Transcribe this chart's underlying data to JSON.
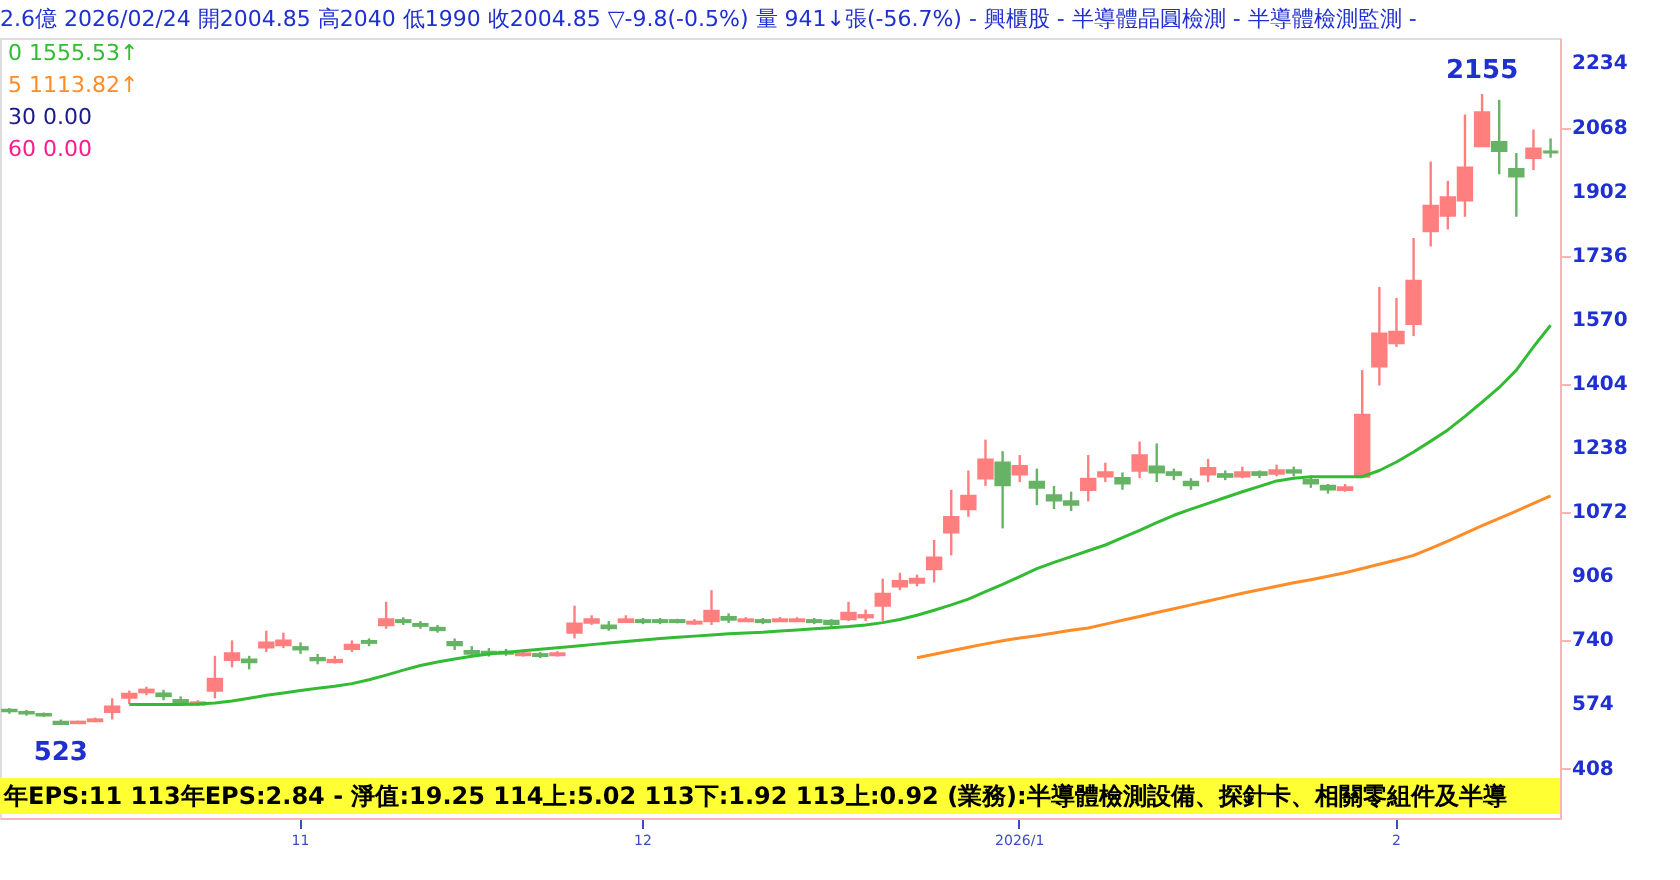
{
  "chart_data": {
    "type": "candlestick",
    "title": "2.6億  2026/02/24  開2004.85  高2040  低1990  收2004.85  ▽-9.8(-0.5%)  量 941↓張(-56.7%) - 興櫃股 - 半導體晶圓檢測 - 半導體檢測監測 -",
    "categories": [
      null,
      null,
      null,
      null,
      null,
      null,
      null,
      null,
      null,
      null,
      null,
      null,
      null,
      null,
      null,
      null,
      null,
      "11",
      null,
      null,
      null,
      null,
      null,
      null,
      null,
      null,
      null,
      null,
      null,
      null,
      null,
      null,
      null,
      null,
      null,
      null,
      null,
      "12",
      null,
      null,
      null,
      null,
      null,
      null,
      null,
      null,
      null,
      null,
      null,
      null,
      null,
      null,
      null,
      null,
      null,
      null,
      null,
      null,
      null,
      "2026/1",
      null,
      null,
      null,
      null,
      null,
      null,
      null,
      null,
      null,
      null,
      null,
      null,
      null,
      null,
      null,
      null,
      null,
      null,
      null,
      null,
      null,
      "2",
      null,
      null,
      null,
      null,
      null,
      null,
      null,
      null,
      null
    ],
    "ohlc": [
      [
        560,
        565,
        550,
        557
      ],
      [
        554,
        560,
        545,
        551
      ],
      [
        549,
        553,
        542,
        546
      ],
      [
        529,
        535,
        523,
        524
      ],
      [
        526,
        532,
        525,
        529
      ],
      [
        531,
        540,
        528,
        535
      ],
      [
        555,
        590,
        535,
        568
      ],
      [
        592,
        610,
        575,
        601
      ],
      [
        606,
        620,
        598,
        612
      ],
      [
        602,
        612,
        585,
        596
      ],
      [
        585,
        595,
        570,
        579
      ],
      [
        574,
        585,
        570,
        579
      ],
      [
        610,
        700,
        590,
        640
      ],
      [
        690,
        740,
        670,
        706
      ],
      [
        690,
        700,
        665,
        684
      ],
      [
        722,
        765,
        710,
        734
      ],
      [
        728,
        760,
        720,
        739
      ],
      [
        722,
        735,
        705,
        717
      ],
      [
        694,
        705,
        678,
        689
      ],
      [
        684,
        700,
        680,
        689
      ],
      [
        718,
        740,
        710,
        728
      ],
      [
        738,
        745,
        725,
        734
      ],
      [
        780,
        840,
        770,
        794
      ],
      [
        792,
        800,
        780,
        788
      ],
      [
        782,
        790,
        770,
        778
      ],
      [
        772,
        780,
        760,
        767
      ],
      [
        735,
        745,
        715,
        728
      ],
      [
        712,
        725,
        700,
        706
      ],
      [
        710,
        720,
        698,
        706
      ],
      [
        710,
        718,
        700,
        706
      ],
      [
        702,
        715,
        698,
        706
      ],
      [
        704,
        710,
        694,
        700
      ],
      [
        702,
        712,
        698,
        706
      ],
      [
        760,
        830,
        745,
        783
      ],
      [
        786,
        805,
        780,
        794
      ],
      [
        778,
        790,
        765,
        772
      ],
      [
        788,
        805,
        785,
        794
      ],
      [
        792,
        798,
        782,
        788
      ],
      [
        792,
        798,
        782,
        788
      ],
      [
        792,
        796,
        784,
        788
      ],
      [
        784,
        795,
        780,
        788
      ],
      [
        790,
        870,
        780,
        816
      ],
      [
        800,
        810,
        785,
        794
      ],
      [
        790,
        800,
        788,
        794
      ],
      [
        792,
        798,
        782,
        788
      ],
      [
        790,
        800,
        788,
        794
      ],
      [
        790,
        800,
        788,
        794
      ],
      [
        792,
        798,
        782,
        788
      ],
      [
        790,
        795,
        775,
        783
      ],
      [
        795,
        840,
        790,
        811
      ],
      [
        800,
        820,
        790,
        805
      ],
      [
        830,
        900,
        790,
        860
      ],
      [
        880,
        915,
        870,
        893
      ],
      [
        890,
        910,
        880,
        899
      ],
      [
        925,
        1000,
        890,
        954
      ],
      [
        1020,
        1130,
        960,
        1059
      ],
      [
        1080,
        1180,
        1060,
        1114
      ],
      [
        1160,
        1260,
        1140,
        1208
      ],
      [
        1200,
        1230,
        1030,
        1142
      ],
      [
        1170,
        1220,
        1150,
        1191
      ],
      [
        1150,
        1185,
        1090,
        1136
      ],
      [
        1115,
        1140,
        1080,
        1103
      ],
      [
        1100,
        1125,
        1075,
        1092
      ],
      [
        1130,
        1220,
        1100,
        1158
      ],
      [
        1165,
        1200,
        1150,
        1175
      ],
      [
        1160,
        1175,
        1130,
        1147
      ],
      [
        1180,
        1255,
        1160,
        1219
      ],
      [
        1190,
        1250,
        1150,
        1175
      ],
      [
        1175,
        1185,
        1155,
        1169
      ],
      [
        1150,
        1160,
        1130,
        1142
      ],
      [
        1170,
        1210,
        1150,
        1186
      ],
      [
        1170,
        1180,
        1155,
        1164
      ],
      [
        1165,
        1190,
        1160,
        1175
      ],
      [
        1175,
        1180,
        1160,
        1169
      ],
      [
        1172,
        1195,
        1165,
        1180
      ],
      [
        1180,
        1190,
        1165,
        1175
      ],
      [
        1155,
        1165,
        1135,
        1147
      ],
      [
        1140,
        1145,
        1120,
        1131
      ],
      [
        1130,
        1145,
        1125,
        1136
      ],
      [
        1164,
        1440,
        1164,
        1324
      ],
      [
        1450,
        1655,
        1400,
        1534
      ],
      [
        1510,
        1627,
        1500,
        1539
      ],
      [
        1560,
        1782,
        1528,
        1671
      ],
      [
        1800,
        1980,
        1760,
        1865
      ],
      [
        1840,
        1930,
        1804,
        1887
      ],
      [
        1880,
        2102,
        1837,
        1964
      ],
      [
        2020,
        2155,
        2019,
        2107
      ],
      [
        2030,
        2140,
        1947,
        2008
      ],
      [
        1960,
        2002,
        1837,
        1942
      ],
      [
        1990,
        2063,
        1958,
        2013
      ],
      [
        2004.85,
        2040,
        1990,
        2004.85
      ]
    ],
    "colors": [
      "#66b366",
      "#66b366",
      "#66b366",
      "#66b366",
      "#ff7f7f",
      "#ff7f7f",
      "#ff7f7f",
      "#ff7f7f",
      "#ff7f7f",
      "#66b366",
      "#66b366",
      "#ff7f7f",
      "#ff7f7f",
      "#ff7f7f",
      "#66b366",
      "#ff7f7f",
      "#ff7f7f",
      "#66b366",
      "#66b366",
      "#ff7f7f",
      "#ff7f7f",
      "#66b366",
      "#ff7f7f",
      "#66b366",
      "#66b366",
      "#66b366",
      "#66b366",
      "#66b366",
      "#66b366",
      "#66b366",
      "#ff7f7f",
      "#66b366",
      "#ff7f7f",
      "#ff7f7f",
      "#ff7f7f",
      "#66b366",
      "#ff7f7f",
      "#66b366",
      "#66b366",
      "#66b366",
      "#ff7f7f",
      "#ff7f7f",
      "#66b366",
      "#ff7f7f",
      "#66b366",
      "#ff7f7f",
      "#ff7f7f",
      "#66b366",
      "#66b366",
      "#ff7f7f",
      "#ff7f7f",
      "#ff7f7f",
      "#ff7f7f",
      "#ff7f7f",
      "#ff7f7f",
      "#ff7f7f",
      "#ff7f7f",
      "#ff7f7f",
      "#66b366",
      "#ff7f7f",
      "#66b366",
      "#66b366",
      "#66b366",
      "#ff7f7f",
      "#ff7f7f",
      "#66b366",
      "#ff7f7f",
      "#66b366",
      "#66b366",
      "#66b366",
      "#ff7f7f",
      "#66b366",
      "#ff7f7f",
      "#66b366",
      "#ff7f7f",
      "#66b366",
      "#66b366",
      "#66b366",
      "#ff7f7f",
      "#ff7f7f",
      "#ff7f7f",
      "#ff7f7f",
      "#ff7f7f",
      "#ff7f7f",
      "#ff7f7f",
      "#ff7f7f",
      "#ff7f7f",
      "#66b366",
      "#66b366",
      "#ff7f7f",
      "#66b366"
    ],
    "series": [
      {
        "type": "line",
        "color": "#33bb33",
        "values": [
          null,
          null,
          null,
          null,
          null,
          null,
          null,
          574,
          574,
          574,
          574,
          575,
          578,
          583,
          590,
          598,
          604,
          610,
          616,
          621,
          628,
          638,
          650,
          663,
          675,
          684,
          692,
          699,
          705,
          709,
          713,
          717,
          721,
          725,
          729,
          733,
          737,
          741,
          745,
          748,
          751,
          754,
          757,
          759,
          761,
          764,
          767,
          770,
          773,
          776,
          780,
          786,
          794,
          805,
          818,
          832,
          847,
          866,
          885,
          905,
          926,
          942,
          957,
          972,
          987,
          1006,
          1025,
          1045,
          1064,
          1080,
          1095,
          1110,
          1125,
          1139,
          1153,
          1160,
          1164,
          1164,
          1164,
          1164,
          1180,
          1202,
          1228,
          1256,
          1285,
          1320,
          1357,
          1395,
          1440,
          1500,
          1556
        ]
      },
      {
        "type": "line",
        "color": "#ff8c26",
        "values": [
          null,
          null,
          null,
          null,
          null,
          null,
          null,
          null,
          null,
          null,
          null,
          null,
          null,
          null,
          null,
          null,
          null,
          null,
          null,
          null,
          null,
          null,
          null,
          null,
          null,
          null,
          null,
          null,
          null,
          null,
          null,
          null,
          null,
          null,
          null,
          null,
          null,
          null,
          null,
          null,
          null,
          null,
          null,
          null,
          null,
          null,
          null,
          null,
          null,
          null,
          null,
          null,
          null,
          695,
          704,
          713,
          722,
          731,
          739,
          746,
          752,
          759,
          766,
          772,
          782,
          792,
          802,
          812,
          822,
          832,
          842,
          852,
          862,
          871,
          880,
          889,
          897,
          906,
          915,
          926,
          937,
          948,
          960,
          978,
          997,
          1017,
          1037,
          1056,
          1075,
          1095,
          1114
        ]
      }
    ],
    "ylim": [
      280,
      2300
    ],
    "yticks": [
      408,
      574,
      740,
      906,
      1072,
      1238,
      1404,
      1570,
      1736,
      1902,
      2068,
      2234
    ],
    "annotations": [
      {
        "text": "523",
        "y": 523
      },
      {
        "text": "2155",
        "y": 2155
      },
      "0  1555.53↑",
      "5  1113.82↑",
      "30  0.00",
      "60  0.00",
      "年EPS:11   113年EPS:2.84   -   淨值:19.25   114上:5.02   113下:1.92   113上:0.92 (業務):半導體檢測設備、探針卡、相關零組件及半導"
    ],
    "grid": false
  }
}
